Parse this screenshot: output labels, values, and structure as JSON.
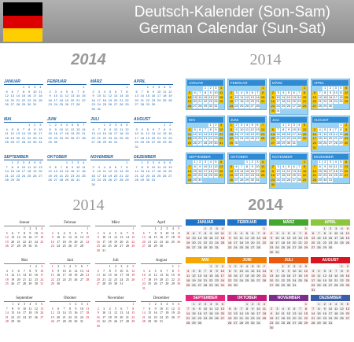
{
  "header": {
    "line1": "Deutsch-Kalender (Son-Sam)",
    "line2": "German Calendar (Sun-Sat)",
    "flag_colors": [
      "#000000",
      "#dd0000",
      "#ffce00"
    ]
  },
  "year": "2014",
  "quadrants": [
    {
      "style": "blue-italic",
      "months": [
        "JANUAR",
        "FEBRUAR",
        "MÄRZ",
        "APRIL",
        "MAI",
        "JUNI",
        "JULI",
        "AUGUST",
        "SEPTEMBER",
        "OKTOBER",
        "NOVEMBER",
        "DEZEMBER"
      ]
    },
    {
      "style": "blue-boxes",
      "months": [
        "JANUAR",
        "FEBRUAR",
        "MÄRZ",
        "APRIL",
        "MAI",
        "JUNI",
        "JULI",
        "AUGUST",
        "SEPTEMBER",
        "OKTOBER",
        "NOVEMBER",
        "DEZEMBER"
      ]
    },
    {
      "style": "serif-classic",
      "months": [
        "Januar",
        "Februar",
        "März",
        "April",
        "Mai",
        "Juni",
        "Juli",
        "August",
        "September",
        "Oktober",
        "November",
        "Dezember"
      ]
    },
    {
      "style": "colored-headers",
      "months": [
        "JANUAR",
        "FEBRUAR",
        "MÄRZ",
        "APRIL",
        "MAI",
        "JUNI",
        "JULI",
        "AUGUST",
        "SEPTEMBER",
        "OKTOBER",
        "NOVEMBER",
        "DEZEMBER"
      ],
      "header_colors": [
        "#1e73c8",
        "#1e73c8",
        "#43a82c",
        "#8cc63f",
        "#f5a800",
        "#ef7d00",
        "#e95a0c",
        "#d7141f",
        "#e6287a",
        "#c21c7c",
        "#7b2d8e",
        "#3b5ca8"
      ]
    }
  ],
  "calendar": {
    "start_weekday": [
      3,
      6,
      6,
      2,
      4,
      0,
      2,
      5,
      1,
      3,
      6,
      1
    ],
    "days_in_month": [
      31,
      28,
      31,
      30,
      31,
      30,
      31,
      31,
      30,
      31,
      30,
      31
    ]
  }
}
